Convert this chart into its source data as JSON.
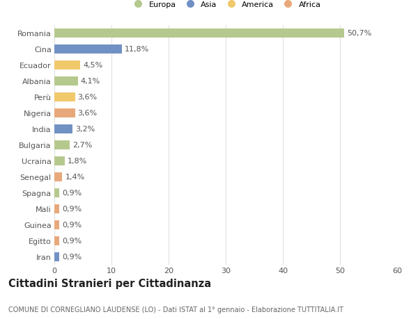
{
  "categories": [
    "Romania",
    "Cina",
    "Ecuador",
    "Albania",
    "Perù",
    "Nigeria",
    "India",
    "Bulgaria",
    "Ucraina",
    "Senegal",
    "Spagna",
    "Mali",
    "Guinea",
    "Egitto",
    "Iran"
  ],
  "values": [
    50.7,
    11.8,
    4.5,
    4.1,
    3.6,
    3.6,
    3.2,
    2.7,
    1.8,
    1.4,
    0.9,
    0.9,
    0.9,
    0.9,
    0.9
  ],
  "labels": [
    "50,7%",
    "11,8%",
    "4,5%",
    "4,1%",
    "3,6%",
    "3,6%",
    "3,2%",
    "2,7%",
    "1,8%",
    "1,4%",
    "0,9%",
    "0,9%",
    "0,9%",
    "0,9%",
    "0,9%"
  ],
  "colors": [
    "#b5c98e",
    "#7191c4",
    "#f0c96b",
    "#b5c98e",
    "#f0c96b",
    "#e8a97a",
    "#7191c4",
    "#b5c98e",
    "#b5c98e",
    "#e8a97a",
    "#b5c98e",
    "#e8a97a",
    "#e8a97a",
    "#e8a97a",
    "#7191c4"
  ],
  "legend_labels": [
    "Europa",
    "Asia",
    "America",
    "Africa"
  ],
  "legend_colors": [
    "#b5c98e",
    "#7191c4",
    "#f0c96b",
    "#e8a97a"
  ],
  "title": "Cittadini Stranieri per Cittadinanza",
  "subtitle": "COMUNE DI CORNEGLIANO LAUDENSE (LO) - Dati ISTAT al 1° gennaio - Elaborazione TUTTITALIA.IT",
  "xlim": [
    0,
    60
  ],
  "xticks": [
    0,
    10,
    20,
    30,
    40,
    50,
    60
  ],
  "background_color": "#ffffff",
  "grid_color": "#e0e0e0",
  "bar_height": 0.55,
  "label_fontsize": 8.0,
  "tick_fontsize": 8.0,
  "title_fontsize": 10.5,
  "subtitle_fontsize": 7.0
}
